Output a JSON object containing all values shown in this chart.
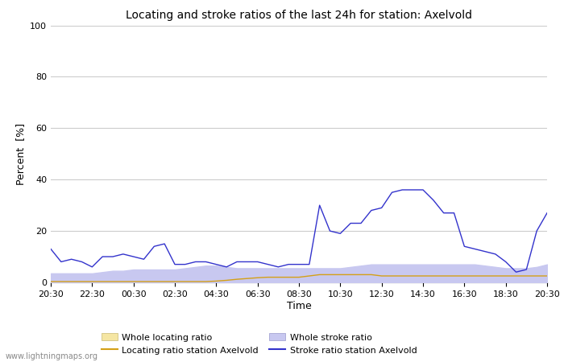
{
  "title": "Locating and stroke ratios of the last 24h for station: Axelvold",
  "xlabel": "Time",
  "ylabel": "Percent  [%]",
  "xlim": [
    0,
    24
  ],
  "ylim": [
    0,
    100
  ],
  "yticks": [
    0,
    20,
    40,
    60,
    80,
    100
  ],
  "xtick_labels": [
    "20:30",
    "22:30",
    "00:30",
    "02:30",
    "04:30",
    "06:30",
    "08:30",
    "10:30",
    "12:30",
    "14:30",
    "16:30",
    "18:30",
    "20:30"
  ],
  "watermark": "www.lightningmaps.org",
  "grid_color": "#cccccc",
  "whole_locating_color": "#f5e6a3",
  "whole_stroke_color": "#c8c8f0",
  "locating_line_color": "#d4a017",
  "stroke_line_color": "#3333cc",
  "legend_labels": [
    "Whole locating ratio",
    "Locating ratio station Axelvold",
    "Whole stroke ratio",
    "Stroke ratio station Axelvold"
  ],
  "whole_locating": [
    0.5,
    0.5,
    0.5,
    0.5,
    0.5,
    0.5,
    0.5,
    0.5,
    0.5,
    0.5,
    0.5,
    0.5,
    0.5,
    0.5,
    0.5,
    0.5,
    1.0,
    1.5,
    2.0,
    2.5,
    3.0,
    3.5,
    3.5,
    3.5,
    3.5,
    3.5,
    3.5,
    3.5,
    3.5,
    3.5,
    3.0,
    2.5,
    2.5,
    2.5,
    2.5,
    2.5,
    2.5,
    2.5,
    2.5,
    2.5,
    2.5,
    2.5,
    2.5,
    2.5,
    2.5,
    2.5,
    2.5,
    2.5,
    2.5
  ],
  "whole_stroke": [
    3.5,
    3.5,
    3.5,
    3.5,
    3.5,
    4.0,
    4.5,
    4.5,
    5.0,
    5.0,
    5.0,
    5.0,
    5.0,
    5.5,
    6.0,
    6.5,
    6.5,
    6.0,
    5.5,
    5.5,
    5.5,
    5.5,
    5.5,
    5.5,
    5.5,
    5.5,
    5.5,
    5.5,
    5.5,
    6.0,
    6.5,
    7.0,
    7.0,
    7.0,
    7.0,
    7.0,
    7.0,
    7.0,
    7.0,
    7.0,
    7.0,
    7.0,
    6.5,
    6.0,
    5.5,
    5.5,
    5.5,
    6.0,
    7.0
  ],
  "locating_ratio": [
    0.3,
    0.3,
    0.3,
    0.3,
    0.3,
    0.3,
    0.3,
    0.3,
    0.3,
    0.3,
    0.3,
    0.3,
    0.3,
    0.3,
    0.3,
    0.3,
    0.5,
    0.8,
    1.2,
    1.5,
    1.8,
    2.0,
    2.0,
    2.0,
    2.0,
    2.5,
    3.0,
    3.0,
    3.0,
    3.0,
    3.0,
    3.0,
    2.5,
    2.5,
    2.5,
    2.5,
    2.5,
    2.5,
    2.5,
    2.5,
    2.5,
    2.5,
    2.5,
    2.5,
    2.5,
    2.5,
    2.5,
    2.5,
    2.5
  ],
  "stroke_ratio": [
    13,
    8,
    9,
    8,
    6,
    10,
    10,
    11,
    10,
    9,
    14,
    15,
    7,
    7,
    8,
    8,
    7,
    6,
    8,
    8,
    8,
    7,
    6,
    7,
    7,
    7,
    30,
    20,
    19,
    23,
    23,
    28,
    29,
    35,
    36,
    36,
    36,
    32,
    27,
    27,
    14,
    13,
    12,
    11,
    8,
    4,
    5,
    20,
    27
  ]
}
